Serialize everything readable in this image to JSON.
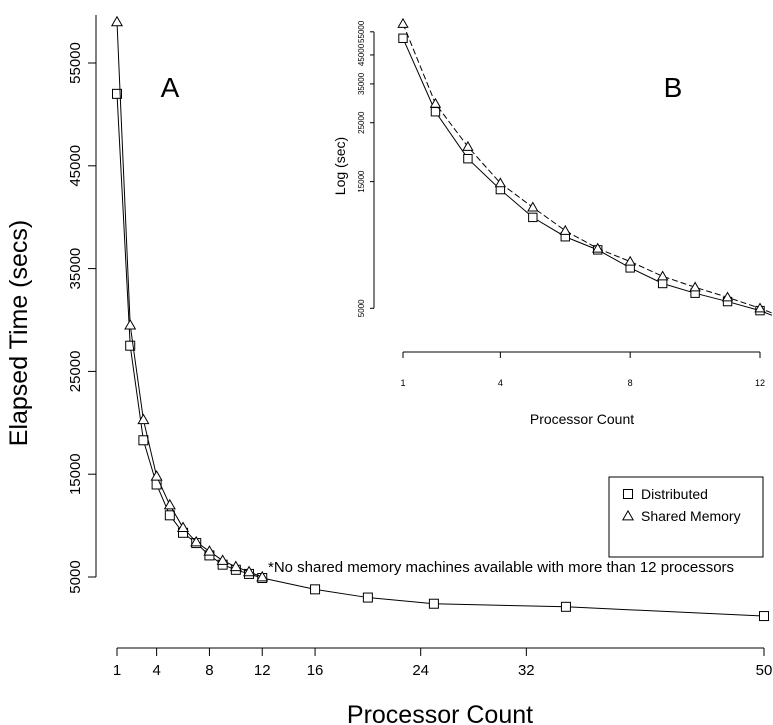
{
  "chart_data": [
    {
      "panel": "A",
      "type": "line",
      "xlabel": "Processor Count",
      "ylabel": "Elapsed Time (secs)",
      "xticks": [
        1,
        4,
        8,
        12,
        16,
        24,
        32,
        50
      ],
      "yticks": [
        5000,
        15000,
        25000,
        35000,
        45000,
        55000
      ],
      "xlim": [
        1,
        50
      ],
      "ylim": [
        0,
        60000
      ],
      "legend_position": "right",
      "note": "*No shared memory machines available with more than 12 processors",
      "series": [
        {
          "name": "Distributed",
          "marker": "square",
          "x": [
            1,
            2,
            3,
            4,
            5,
            6,
            7,
            8,
            9,
            10,
            11,
            12,
            16,
            20,
            25,
            35,
            50
          ],
          "y": [
            52000,
            27500,
            18300,
            14000,
            11000,
            9300,
            8300,
            7100,
            6200,
            5700,
            5300,
            4900,
            3800,
            3000,
            2400,
            2100,
            1200
          ]
        },
        {
          "name": "Shared Memory",
          "marker": "triangle",
          "x": [
            1,
            2,
            3,
            4,
            5,
            6,
            7,
            8,
            9,
            10,
            11,
            12
          ],
          "y": [
            59000,
            29500,
            20300,
            14800,
            12000,
            9800,
            8400,
            7500,
            6600,
            6000,
            5500,
            5000
          ]
        }
      ]
    },
    {
      "panel": "B",
      "type": "line",
      "xlabel": "Processor Count",
      "ylabel": "Log (sec)",
      "log_y": true,
      "xticks": [
        1,
        4,
        8,
        12
      ],
      "yticks": [
        5000,
        15000,
        25000,
        35000,
        45000,
        55000
      ],
      "xlim": [
        1,
        12
      ],
      "ylim": [
        4800,
        62000
      ],
      "series": [
        {
          "name": "Distributed",
          "marker": "square",
          "x": [
            1,
            2,
            3,
            4,
            5,
            6,
            7,
            8,
            9,
            10,
            11,
            12
          ],
          "y": [
            52000,
            27500,
            18300,
            14000,
            11000,
            9300,
            8300,
            7100,
            6200,
            5700,
            5300,
            4900
          ]
        },
        {
          "name": "Shared Memory",
          "marker": "triangle",
          "x": [
            1,
            2,
            3,
            4,
            5,
            6,
            7,
            8,
            9,
            10,
            11,
            12
          ],
          "y": [
            59000,
            29500,
            20300,
            14800,
            12000,
            9800,
            8400,
            7500,
            6600,
            6000,
            5500,
            5000
          ]
        }
      ]
    }
  ]
}
